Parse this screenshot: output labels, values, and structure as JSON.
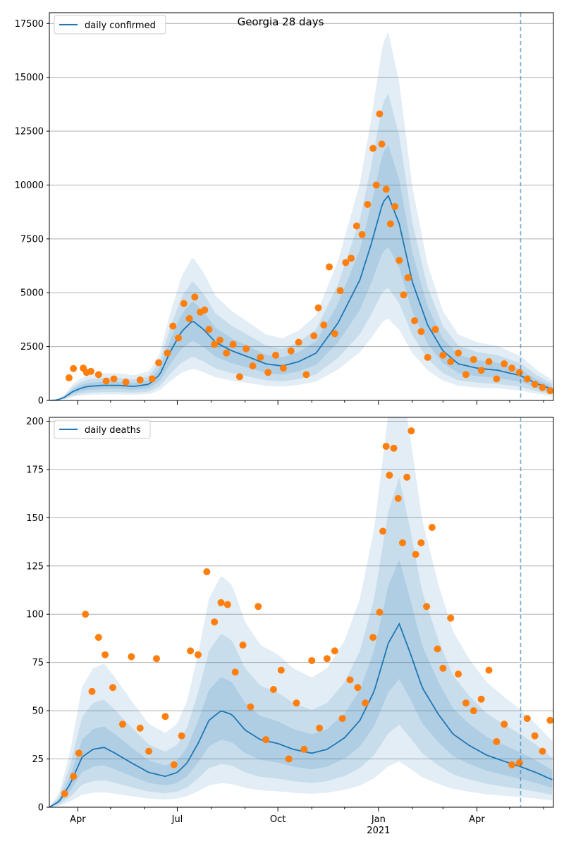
{
  "page_title": "Georgia 28 days",
  "colors": {
    "model_line": "#1f77b4",
    "observed_points": "#ff7f0e",
    "band": "#1f77b4",
    "grid": "#b0b0b0",
    "forecast_line": "#1f77b4"
  },
  "x_ticks": {
    "major": [
      "Apr",
      "Jul",
      "Oct",
      "Jan",
      "Apr"
    ],
    "year_label": "2021"
  },
  "chart_data": [
    {
      "type": "line",
      "panel": "top",
      "title": "Georgia 28 days",
      "legend": {
        "label": "daily confirmed",
        "position": "top-left"
      },
      "x_range": [
        "2020-03-06",
        "2021-06-10"
      ],
      "forecast_start": "2021-05-11",
      "ylim": [
        0,
        18000
      ],
      "yticks": [
        0,
        2500,
        5000,
        7500,
        10000,
        12500,
        15000,
        17500
      ],
      "ytick_labels": [
        "0",
        "2500",
        "5000",
        "7500",
        "10000",
        "12500",
        "15000",
        "17500"
      ],
      "grid": "horizontal",
      "series": [
        {
          "name": "daily confirmed",
          "kind": "model",
          "points": [
            [
              "2020-03-06",
              0
            ],
            [
              "2020-03-13",
              20
            ],
            [
              "2020-03-20",
              150
            ],
            [
              "2020-03-27",
              400
            ],
            [
              "2020-04-03",
              550
            ],
            [
              "2020-04-10",
              650
            ],
            [
              "2020-04-24",
              700
            ],
            [
              "2020-05-08",
              700
            ],
            [
              "2020-05-22",
              650
            ],
            [
              "2020-06-05",
              750
            ],
            [
              "2020-06-15",
              1200
            ],
            [
              "2020-06-25",
              2300
            ],
            [
              "2020-07-05",
              3200
            ],
            [
              "2020-07-15",
              3700
            ],
            [
              "2020-07-25",
              3300
            ],
            [
              "2020-08-05",
              2700
            ],
            [
              "2020-08-20",
              2300
            ],
            [
              "2020-09-05",
              2000
            ],
            [
              "2020-09-20",
              1700
            ],
            [
              "2020-10-05",
              1600
            ],
            [
              "2020-10-20",
              1800
            ],
            [
              "2020-11-05",
              2200
            ],
            [
              "2020-11-15",
              2900
            ],
            [
              "2020-11-25",
              3600
            ],
            [
              "2020-12-05",
              4600
            ],
            [
              "2020-12-15",
              5600
            ],
            [
              "2020-12-25",
              7200
            ],
            [
              "2021-01-05",
              9200
            ],
            [
              "2021-01-10",
              9500
            ],
            [
              "2021-01-20",
              8200
            ],
            [
              "2021-02-01",
              5500
            ],
            [
              "2021-02-15",
              3500
            ],
            [
              "2021-03-01",
              2300
            ],
            [
              "2021-03-15",
              1700
            ],
            [
              "2021-04-01",
              1500
            ],
            [
              "2021-04-20",
              1400
            ],
            [
              "2021-05-11",
              1150
            ],
            [
              "2021-05-25",
              800
            ],
            [
              "2021-06-10",
              500
            ]
          ],
          "band_inner": [
            0.75,
            1.25
          ],
          "band_mid": [
            0.55,
            1.5
          ],
          "band_outer": [
            0.4,
            1.8
          ]
        },
        {
          "name": "observed",
          "kind": "points",
          "points": [
            [
              "2020-03-24",
              1050
            ],
            [
              "2020-03-28",
              1480
            ],
            [
              "2020-04-06",
              1500
            ],
            [
              "2020-04-09",
              1300
            ],
            [
              "2020-04-13",
              1350
            ],
            [
              "2020-04-20",
              1200
            ],
            [
              "2020-04-27",
              900
            ],
            [
              "2020-05-04",
              1000
            ],
            [
              "2020-05-15",
              850
            ],
            [
              "2020-05-28",
              950
            ],
            [
              "2020-06-08",
              1000
            ],
            [
              "2020-06-14",
              1750
            ],
            [
              "2020-06-22",
              2200
            ],
            [
              "2020-06-27",
              3450
            ],
            [
              "2020-07-02",
              2900
            ],
            [
              "2020-07-07",
              4500
            ],
            [
              "2020-07-12",
              3800
            ],
            [
              "2020-07-17",
              4800
            ],
            [
              "2020-07-22",
              4100
            ],
            [
              "2020-07-26",
              4200
            ],
            [
              "2020-07-30",
              3300
            ],
            [
              "2020-08-04",
              2600
            ],
            [
              "2020-08-09",
              2800
            ],
            [
              "2020-08-15",
              2200
            ],
            [
              "2020-08-21",
              2600
            ],
            [
              "2020-08-27",
              1100
            ],
            [
              "2020-09-02",
              2400
            ],
            [
              "2020-09-08",
              1600
            ],
            [
              "2020-09-15",
              2000
            ],
            [
              "2020-09-22",
              1300
            ],
            [
              "2020-09-29",
              2100
            ],
            [
              "2020-10-06",
              1500
            ],
            [
              "2020-10-13",
              2300
            ],
            [
              "2020-10-20",
              2700
            ],
            [
              "2020-10-27",
              1200
            ],
            [
              "2020-11-03",
              3000
            ],
            [
              "2020-11-07",
              4300
            ],
            [
              "2020-11-12",
              3500
            ],
            [
              "2020-11-17",
              6200
            ],
            [
              "2020-11-22",
              3100
            ],
            [
              "2020-11-27",
              5100
            ],
            [
              "2020-12-02",
              6400
            ],
            [
              "2020-12-07",
              6600
            ],
            [
              "2020-12-12",
              8100
            ],
            [
              "2020-12-17",
              7700
            ],
            [
              "2020-12-22",
              9100
            ],
            [
              "2020-12-27",
              11700
            ],
            [
              "2020-12-30",
              10000
            ],
            [
              "2021-01-02",
              13300
            ],
            [
              "2021-01-04",
              11900
            ],
            [
              "2021-01-08",
              9800
            ],
            [
              "2021-01-12",
              8200
            ],
            [
              "2021-01-16",
              9000
            ],
            [
              "2021-01-20",
              6500
            ],
            [
              "2021-01-24",
              4900
            ],
            [
              "2021-01-28",
              5700
            ],
            [
              "2021-02-03",
              3700
            ],
            [
              "2021-02-09",
              3200
            ],
            [
              "2021-02-15",
              2000
            ],
            [
              "2021-02-22",
              3300
            ],
            [
              "2021-03-01",
              2100
            ],
            [
              "2021-03-08",
              1800
            ],
            [
              "2021-03-15",
              2200
            ],
            [
              "2021-03-22",
              1200
            ],
            [
              "2021-03-29",
              1900
            ],
            [
              "2021-04-05",
              1400
            ],
            [
              "2021-04-12",
              1800
            ],
            [
              "2021-04-19",
              1000
            ],
            [
              "2021-04-26",
              1700
            ],
            [
              "2021-05-03",
              1500
            ],
            [
              "2021-05-10",
              1300
            ],
            [
              "2021-05-17",
              1000
            ],
            [
              "2021-05-24",
              750
            ],
            [
              "2021-05-31",
              600
            ],
            [
              "2021-06-07",
              450
            ]
          ]
        }
      ]
    },
    {
      "type": "line",
      "panel": "bottom",
      "title": "",
      "legend": {
        "label": "daily deaths",
        "position": "top-left"
      },
      "x_range": [
        "2020-03-06",
        "2021-06-10"
      ],
      "forecast_start": "2021-05-11",
      "ylim": [
        0,
        202
      ],
      "yticks": [
        0,
        25,
        50,
        75,
        100,
        125,
        150,
        175,
        200
      ],
      "ytick_labels": [
        "0",
        "25",
        "50",
        "75",
        "100",
        "125",
        "150",
        "175",
        "200"
      ],
      "grid": "horizontal",
      "series": [
        {
          "name": "daily deaths",
          "kind": "model",
          "points": [
            [
              "2020-03-06",
              0
            ],
            [
              "2020-03-15",
              3
            ],
            [
              "2020-03-25",
              12
            ],
            [
              "2020-04-05",
              26
            ],
            [
              "2020-04-15",
              30
            ],
            [
              "2020-04-25",
              31
            ],
            [
              "2020-05-05",
              28
            ],
            [
              "2020-05-20",
              23
            ],
            [
              "2020-06-05",
              18
            ],
            [
              "2020-06-20",
              16
            ],
            [
              "2020-07-01",
              18
            ],
            [
              "2020-07-10",
              23
            ],
            [
              "2020-07-20",
              33
            ],
            [
              "2020-07-30",
              45
            ],
            [
              "2020-08-10",
              50
            ],
            [
              "2020-08-20",
              48
            ],
            [
              "2020-09-01",
              40
            ],
            [
              "2020-09-15",
              35
            ],
            [
              "2020-10-01",
              33
            ],
            [
              "2020-10-15",
              30
            ],
            [
              "2020-11-01",
              28
            ],
            [
              "2020-11-15",
              30
            ],
            [
              "2020-12-01",
              36
            ],
            [
              "2020-12-15",
              45
            ],
            [
              "2020-12-28",
              60
            ],
            [
              "2021-01-10",
              85
            ],
            [
              "2021-01-20",
              95
            ],
            [
              "2021-01-30",
              80
            ],
            [
              "2021-02-10",
              62
            ],
            [
              "2021-02-25",
              48
            ],
            [
              "2021-03-10",
              38
            ],
            [
              "2021-03-25",
              32
            ],
            [
              "2021-04-10",
              27
            ],
            [
              "2021-04-25",
              24
            ],
            [
              "2021-05-11",
              21
            ],
            [
              "2021-05-25",
              18
            ],
            [
              "2021-06-10",
              14
            ]
          ],
          "band_inner": [
            0.7,
            1.35
          ],
          "band_mid": [
            0.45,
            1.8
          ],
          "band_outer": [
            0.25,
            2.4
          ]
        },
        {
          "name": "observed",
          "kind": "points",
          "points": [
            [
              "2020-03-20",
              7
            ],
            [
              "2020-03-28",
              16
            ],
            [
              "2020-04-02",
              28
            ],
            [
              "2020-04-08",
              100
            ],
            [
              "2020-04-14",
              60
            ],
            [
              "2020-04-20",
              88
            ],
            [
              "2020-04-26",
              79
            ],
            [
              "2020-05-03",
              62
            ],
            [
              "2020-05-12",
              43
            ],
            [
              "2020-05-20",
              78
            ],
            [
              "2020-05-28",
              41
            ],
            [
              "2020-06-05",
              29
            ],
            [
              "2020-06-12",
              77
            ],
            [
              "2020-06-20",
              47
            ],
            [
              "2020-06-28",
              22
            ],
            [
              "2020-07-05",
              37
            ],
            [
              "2020-07-13",
              81
            ],
            [
              "2020-07-20",
              79
            ],
            [
              "2020-07-28",
              122
            ],
            [
              "2020-08-04",
              96
            ],
            [
              "2020-08-10",
              106
            ],
            [
              "2020-08-16",
              105
            ],
            [
              "2020-08-23",
              70
            ],
            [
              "2020-08-30",
              84
            ],
            [
              "2020-09-06",
              52
            ],
            [
              "2020-09-13",
              104
            ],
            [
              "2020-09-20",
              35
            ],
            [
              "2020-09-27",
              61
            ],
            [
              "2020-10-04",
              71
            ],
            [
              "2020-10-11",
              25
            ],
            [
              "2020-10-18",
              54
            ],
            [
              "2020-10-25",
              30
            ],
            [
              "2020-11-01",
              76
            ],
            [
              "2020-11-08",
              41
            ],
            [
              "2020-11-15",
              77
            ],
            [
              "2020-11-22",
              81
            ],
            [
              "2020-11-29",
              46
            ],
            [
              "2020-12-06",
              66
            ],
            [
              "2020-12-13",
              62
            ],
            [
              "2020-12-20",
              54
            ],
            [
              "2020-12-27",
              88
            ],
            [
              "2021-01-02",
              101
            ],
            [
              "2021-01-05",
              143
            ],
            [
              "2021-01-08",
              187
            ],
            [
              "2021-01-11",
              172
            ],
            [
              "2021-01-15",
              186
            ],
            [
              "2021-01-19",
              160
            ],
            [
              "2021-01-23",
              137
            ],
            [
              "2021-01-27",
              171
            ],
            [
              "2021-01-31",
              195
            ],
            [
              "2021-02-04",
              131
            ],
            [
              "2021-02-09",
              137
            ],
            [
              "2021-02-14",
              104
            ],
            [
              "2021-02-19",
              145
            ],
            [
              "2021-02-24",
              82
            ],
            [
              "2021-03-01",
              72
            ],
            [
              "2021-03-08",
              98
            ],
            [
              "2021-03-15",
              69
            ],
            [
              "2021-03-22",
              54
            ],
            [
              "2021-03-29",
              50
            ],
            [
              "2021-04-05",
              56
            ],
            [
              "2021-04-12",
              71
            ],
            [
              "2021-04-19",
              34
            ],
            [
              "2021-04-26",
              43
            ],
            [
              "2021-05-03",
              22
            ],
            [
              "2021-05-10",
              23
            ],
            [
              "2021-05-17",
              46
            ],
            [
              "2021-05-24",
              37
            ],
            [
              "2021-05-31",
              29
            ],
            [
              "2021-06-07",
              45
            ]
          ]
        }
      ]
    }
  ]
}
